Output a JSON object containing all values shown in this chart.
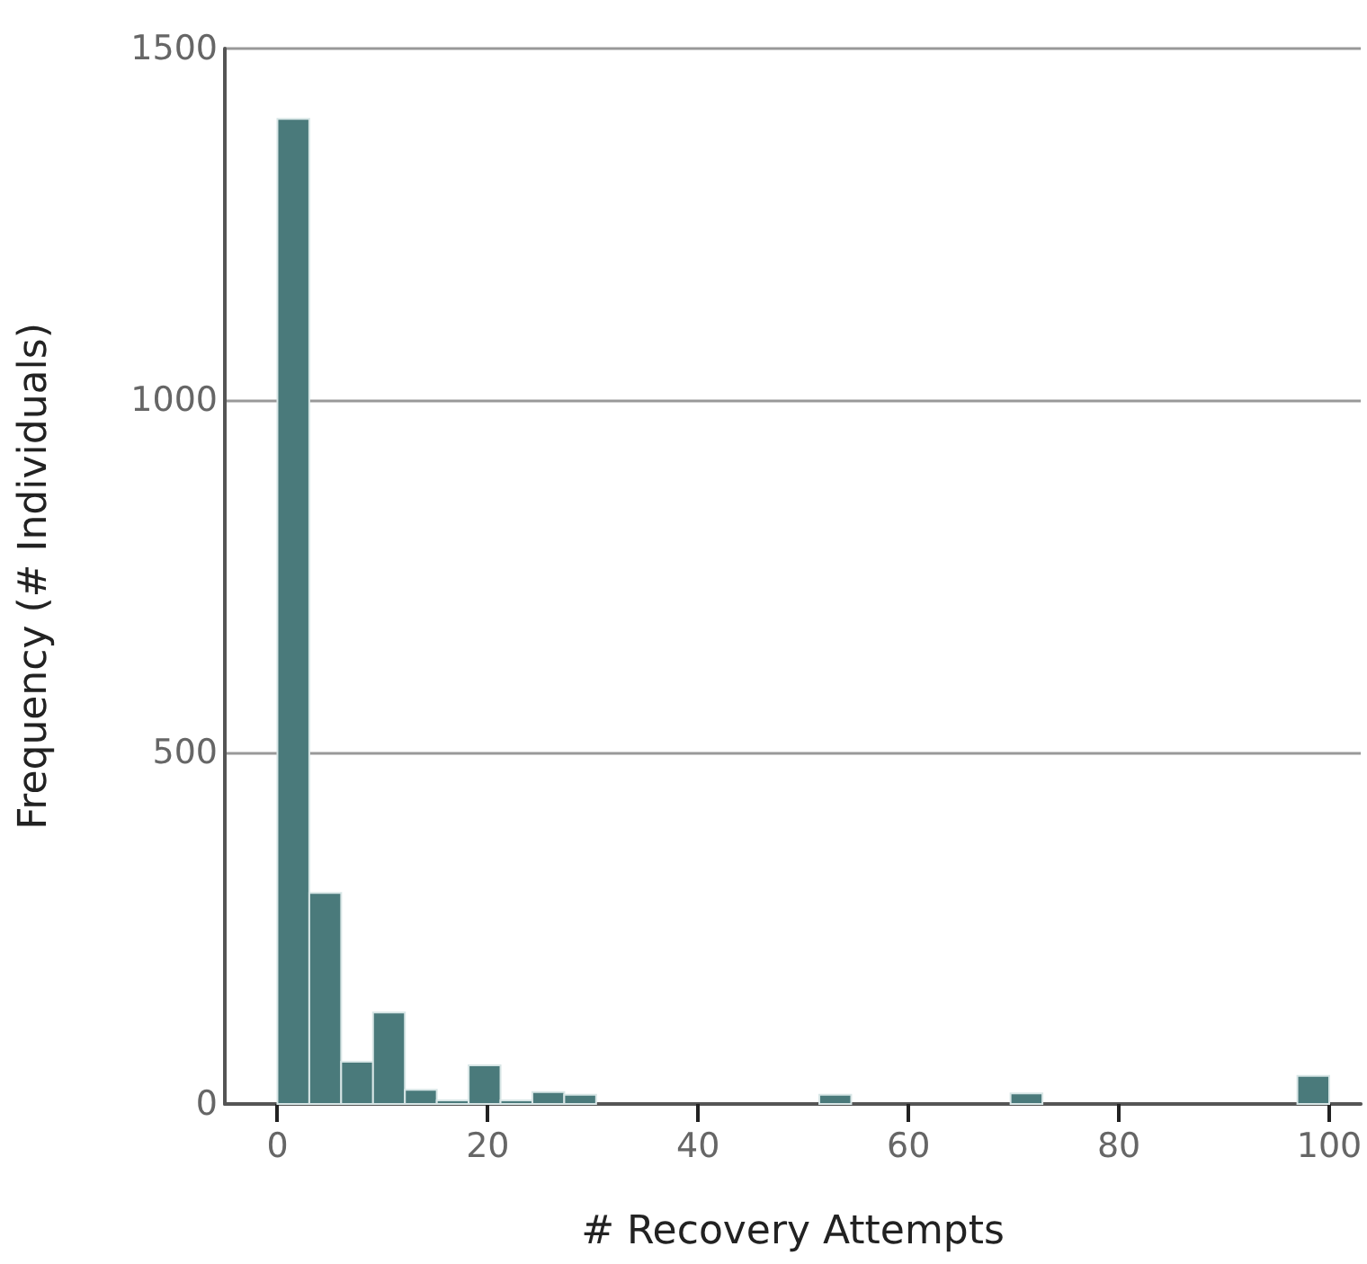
{
  "chart_data": {
    "type": "histogram",
    "xlabel": "# Recovery Attempts",
    "ylabel": "Frequency (# Individuals)",
    "color": "#4a7a7b",
    "bins": [
      0,
      3.03,
      6.06,
      9.09,
      12.12,
      15.15,
      18.18,
      21.21,
      24.24,
      27.27,
      30.3,
      33.33,
      36.36,
      39.39,
      42.42,
      45.45,
      48.48,
      51.52,
      54.55,
      57.58,
      60.61,
      63.64,
      66.67,
      69.7,
      72.73,
      75.76,
      78.79,
      81.82,
      84.85,
      87.88,
      90.91,
      93.94,
      96.97,
      100
    ],
    "values": [
      1400,
      300,
      60,
      130,
      20,
      5,
      55,
      5,
      17,
      13,
      0,
      0,
      0,
      0,
      0,
      0,
      0,
      13,
      0,
      0,
      0,
      0,
      0,
      15,
      0,
      0,
      0,
      0,
      0,
      0,
      0,
      0,
      40
    ],
    "xlim": [
      -5,
      103
    ],
    "xticks": [
      0,
      20,
      40,
      60,
      80,
      100
    ],
    "ylim": [
      0,
      1500
    ],
    "yticks": [
      0,
      500,
      1000,
      1500
    ],
    "grid": "y"
  }
}
